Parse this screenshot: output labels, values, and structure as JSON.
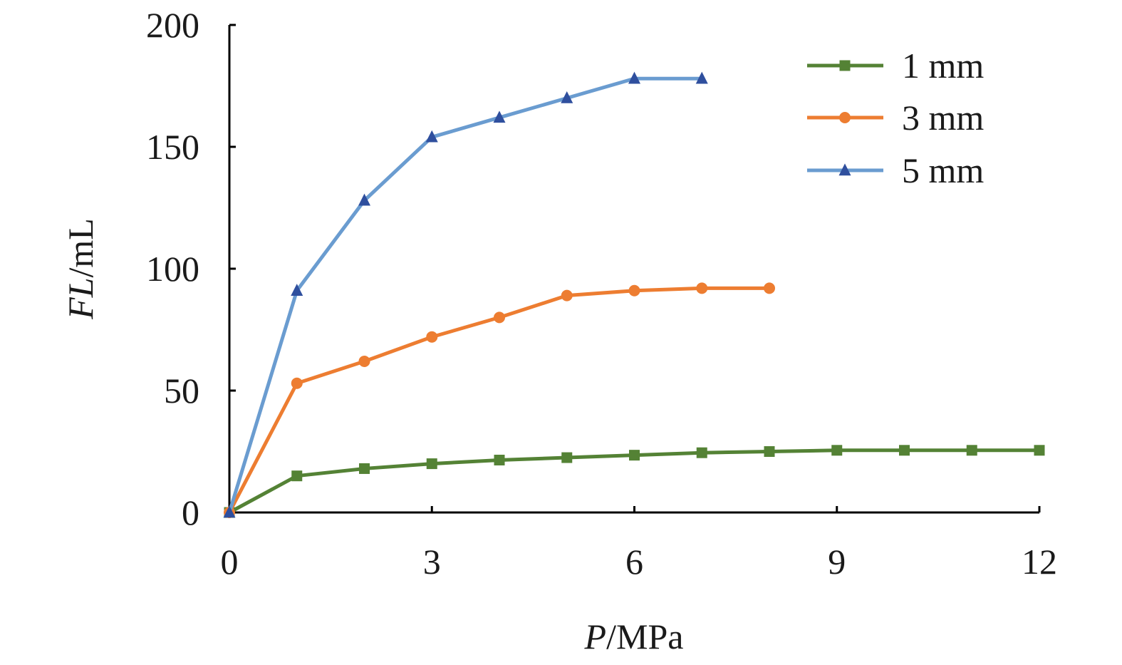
{
  "chart_data": {
    "type": "line",
    "title": "",
    "xlabel": {
      "italic": "P",
      "rest": "/MPa"
    },
    "ylabel": {
      "italic": "FL",
      "rest": "/mL"
    },
    "xlim": [
      0,
      12
    ],
    "ylim": [
      0,
      200
    ],
    "xticks": [
      0,
      3,
      6,
      9,
      12
    ],
    "yticks": [
      0,
      50,
      100,
      150,
      200
    ],
    "xtick_labels": [
      "0",
      "3",
      "6",
      "9",
      "12"
    ],
    "ytick_labels": [
      "0",
      "50",
      "100",
      "150",
      "200"
    ],
    "grid": false,
    "legend_position": "top-right",
    "series": [
      {
        "name": "1 mm",
        "color": "#548235",
        "marker": "square",
        "x": [
          0,
          1,
          2,
          3,
          4,
          5,
          6,
          7,
          8,
          9,
          10,
          11,
          12
        ],
        "y": [
          0,
          15,
          18,
          20,
          21.5,
          22.5,
          23.5,
          24.5,
          25,
          25.5,
          25.5,
          25.5,
          25.5
        ]
      },
      {
        "name": "3 mm",
        "color": "#ED7D31",
        "marker": "circle",
        "x": [
          0,
          1,
          2,
          3,
          4,
          5,
          6,
          7,
          8
        ],
        "y": [
          0,
          53,
          62,
          72,
          80,
          89,
          91,
          92,
          92
        ]
      },
      {
        "name": "5 mm",
        "color": "#6A9CD0",
        "marker_color": "#2F4F9E",
        "marker": "triangle",
        "x": [
          0,
          1,
          2,
          3,
          4,
          5,
          6,
          7
        ],
        "y": [
          0,
          91,
          128,
          154,
          162,
          170,
          178,
          178
        ]
      }
    ]
  }
}
